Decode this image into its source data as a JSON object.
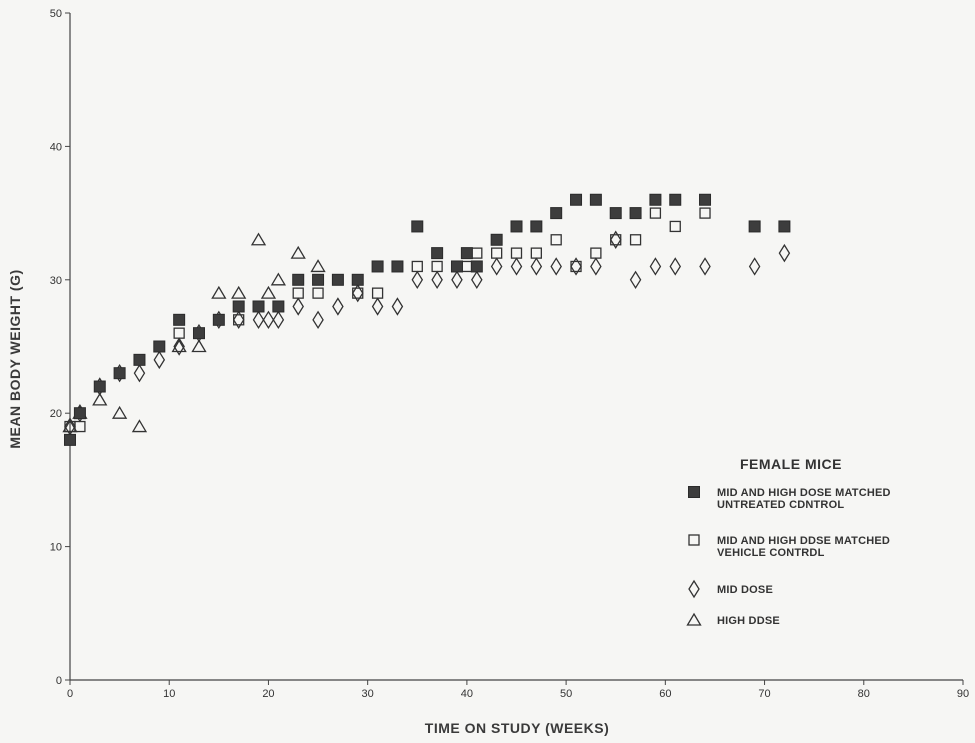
{
  "chart_data": {
    "type": "scatter",
    "title": "",
    "xlabel": "TIME ON STUDY (WEEKS)",
    "ylabel": "MEAN BODY WEIGHT (G)",
    "xlim": [
      0,
      90
    ],
    "ylim": [
      0,
      50
    ],
    "xticks": [
      "0",
      "10",
      "20",
      "30",
      "40",
      "50",
      "60",
      "70",
      "80",
      "90"
    ],
    "yticks": [
      "0",
      "10",
      "20",
      "30",
      "40",
      "50"
    ],
    "grid": false,
    "legend_title": "FEMALE MICE",
    "legend_position": "lower-right",
    "series": [
      {
        "name": "MID AND HIGH DOSE MATCHED UNTREATED CDNTROL",
        "marker": "filled-square",
        "x": [
          0,
          1,
          3,
          5,
          7,
          9,
          11,
          13,
          15,
          17,
          19,
          21,
          23,
          25,
          27,
          29,
          31,
          33,
          35,
          37,
          39,
          40,
          41,
          43,
          45,
          47,
          49,
          51,
          53,
          55,
          57,
          59,
          61,
          64,
          69,
          72
        ],
        "y": [
          18,
          20,
          22,
          23,
          24,
          25,
          27,
          26,
          27,
          28,
          28,
          28,
          30,
          30,
          30,
          30,
          31,
          31,
          34,
          32,
          31,
          32,
          31,
          33,
          34,
          34,
          35,
          36,
          36,
          35,
          35,
          36,
          36,
          36,
          34,
          34
        ]
      },
      {
        "name": "MID AND HIGH DDSE MATCHED VEHICLE CONTRDL",
        "marker": "open-square",
        "x": [
          0,
          1,
          3,
          5,
          7,
          9,
          11,
          13,
          15,
          17,
          19,
          21,
          23,
          25,
          27,
          29,
          31,
          33,
          35,
          37,
          39,
          40,
          41,
          43,
          45,
          47,
          49,
          51,
          53,
          55,
          57,
          59,
          61,
          64
        ],
        "y": [
          19,
          19,
          22,
          23,
          24,
          25,
          26,
          26,
          27,
          27,
          28,
          28,
          29,
          29,
          30,
          29,
          29,
          31,
          31,
          31,
          31,
          31,
          32,
          32,
          32,
          32,
          33,
          31,
          32,
          33,
          33,
          35,
          34,
          35
        ]
      },
      {
        "name": "MID DOSE",
        "marker": "open-diamond",
        "x": [
          0,
          1,
          3,
          5,
          7,
          9,
          11,
          13,
          15,
          17,
          19,
          20,
          21,
          23,
          25,
          27,
          29,
          31,
          33,
          35,
          37,
          39,
          41,
          43,
          45,
          47,
          49,
          51,
          53,
          55,
          57,
          59,
          61,
          64,
          69,
          72
        ],
        "y": [
          19,
          20,
          22,
          23,
          23,
          24,
          25,
          26,
          27,
          27,
          27,
          27,
          27,
          28,
          27,
          28,
          29,
          28,
          28,
          30,
          30,
          30,
          30,
          31,
          31,
          31,
          31,
          31,
          31,
          33,
          30,
          31,
          31,
          31,
          31,
          32
        ]
      },
      {
        "name": "HIGH DDSE",
        "marker": "open-triangle",
        "x": [
          0,
          1,
          3,
          5,
          7,
          11,
          13,
          15,
          17,
          19,
          20,
          21,
          23,
          25
        ],
        "y": [
          19,
          20,
          21,
          20,
          19,
          25,
          25,
          29,
          29,
          33,
          29,
          30,
          32,
          31
        ]
      }
    ]
  }
}
